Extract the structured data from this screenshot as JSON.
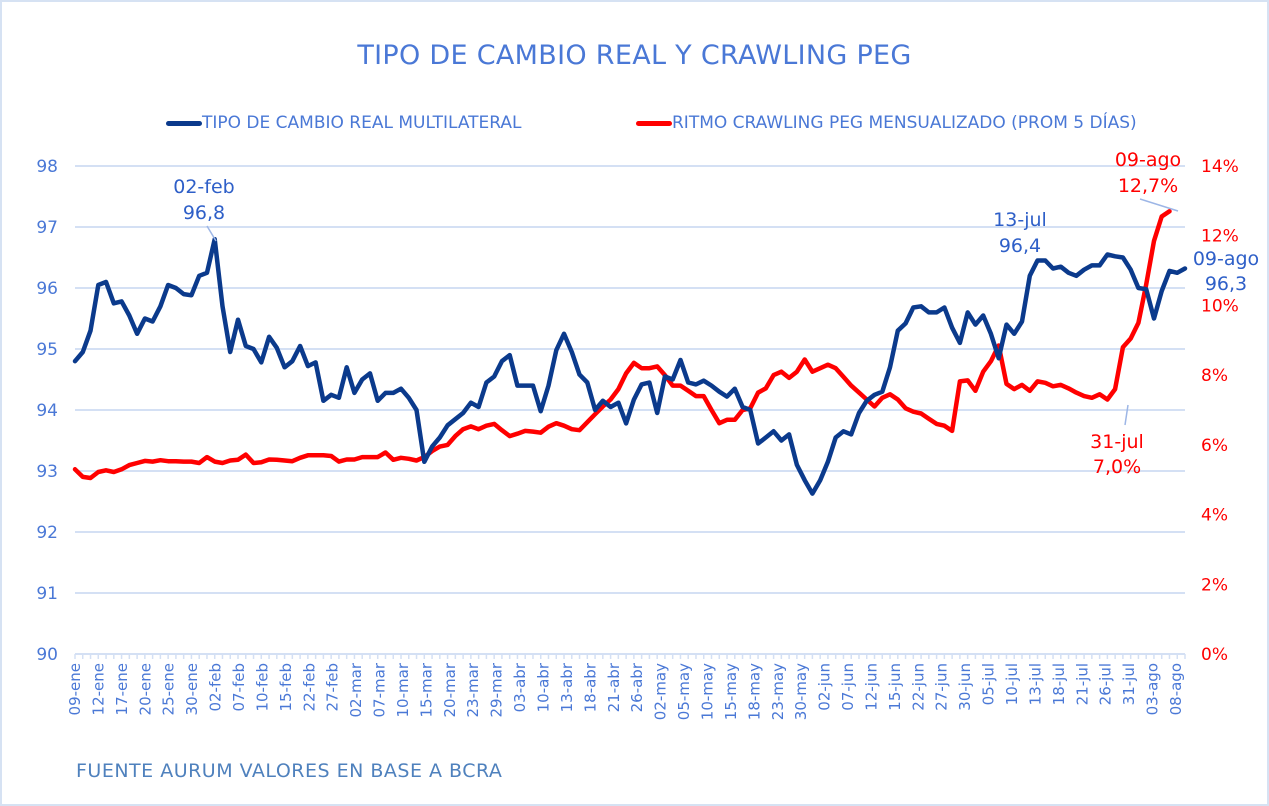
{
  "chart_data": {
    "type": "line",
    "title": "TIPO DE CAMBIO REAL Y CRAWLING PEG",
    "source": "FUENTE AURUM VALORES EN BASE A BCRA",
    "legend_position": "top",
    "grid": true,
    "y_left": {
      "label": "",
      "range": [
        90,
        98
      ],
      "ticks": [
        "90",
        "91",
        "92",
        "93",
        "94",
        "95",
        "96",
        "97",
        "98"
      ]
    },
    "y_right": {
      "label": "",
      "range": [
        0,
        14
      ],
      "ticks": [
        "0%",
        "2%",
        "4%",
        "6%",
        "8%",
        "10%",
        "12%",
        "14%"
      ]
    },
    "x_tick_labels": [
      "09-ene",
      "12-ene",
      "17-ene",
      "20-ene",
      "25-ene",
      "30-ene",
      "02-feb",
      "07-feb",
      "10-feb",
      "15-feb",
      "22-feb",
      "27-feb",
      "02-mar",
      "07-mar",
      "10-mar",
      "15-mar",
      "20-mar",
      "23-mar",
      "29-mar",
      "03-abr",
      "10-abr",
      "13-abr",
      "18-abr",
      "21-abr",
      "26-abr",
      "02-may",
      "05-may",
      "10-may",
      "15-may",
      "18-may",
      "23-may",
      "30-may",
      "02-jun",
      "07-jun",
      "12-jun",
      "15-jun",
      "22-jun",
      "27-jun",
      "30-jun",
      "05-jul",
      "10-jul",
      "13-jul",
      "18-jul",
      "21-jul",
      "26-jul",
      "31-jul",
      "03-ago",
      "08-ago"
    ],
    "series": [
      {
        "name": "TIPO DE CAMBIO REAL MULTILATERAL",
        "axis": "left",
        "color": "#0b3a8c",
        "values": [
          94.8,
          94.95,
          95.3,
          96.05,
          96.1,
          95.75,
          95.78,
          95.55,
          95.25,
          95.5,
          95.45,
          95.7,
          96.05,
          96.0,
          95.9,
          95.88,
          96.2,
          96.25,
          96.8,
          95.7,
          94.95,
          95.48,
          95.05,
          95.0,
          94.78,
          95.2,
          95.02,
          94.7,
          94.8,
          95.05,
          94.72,
          94.78,
          94.15,
          94.25,
          94.2,
          94.7,
          94.28,
          94.5,
          94.6,
          94.15,
          94.28,
          94.28,
          94.35,
          94.2,
          94.0,
          93.15,
          93.4,
          93.55,
          93.75,
          93.85,
          93.95,
          94.12,
          94.05,
          94.45,
          94.55,
          94.8,
          94.9,
          94.4,
          94.4,
          94.4,
          93.98,
          94.4,
          94.98,
          95.25,
          94.95,
          94.58,
          94.45,
          94.0,
          94.15,
          94.05,
          94.12,
          93.78,
          94.17,
          94.42,
          94.45,
          93.95,
          94.55,
          94.5,
          94.82,
          94.45,
          94.42,
          94.48,
          94.4,
          94.3,
          94.22,
          94.35,
          94.05,
          94.0,
          93.45,
          93.55,
          93.65,
          93.5,
          93.6,
          93.1,
          92.85,
          92.63,
          92.85,
          93.15,
          93.55,
          93.65,
          93.6,
          93.95,
          94.15,
          94.25,
          94.3,
          94.7,
          95.3,
          95.42,
          95.68,
          95.7,
          95.6,
          95.6,
          95.68,
          95.35,
          95.1,
          95.6,
          95.4,
          95.55,
          95.25,
          94.85,
          95.4,
          95.25,
          95.45,
          96.2,
          96.45,
          96.45,
          96.32,
          96.35,
          96.25,
          96.2,
          96.3,
          96.37,
          96.37,
          96.55,
          96.52,
          96.5,
          96.3,
          96.0,
          95.98,
          95.5,
          95.95,
          96.28,
          96.25,
          96.32
        ]
      },
      {
        "name": "RITMO CRAWLING PEG MENSUALIZADO (PROM 5 DÍAS)",
        "axis": "right",
        "color": "#ff0000",
        "values": [
          5.3,
          5.08,
          5.05,
          5.22,
          5.27,
          5.22,
          5.3,
          5.42,
          5.48,
          5.54,
          5.52,
          5.56,
          5.53,
          5.53,
          5.52,
          5.52,
          5.48,
          5.65,
          5.52,
          5.48,
          5.55,
          5.57,
          5.72,
          5.48,
          5.5,
          5.58,
          5.57,
          5.55,
          5.53,
          5.63,
          5.7,
          5.7,
          5.7,
          5.68,
          5.52,
          5.58,
          5.58,
          5.65,
          5.65,
          5.65,
          5.78,
          5.57,
          5.63,
          5.6,
          5.55,
          5.65,
          5.82,
          5.95,
          6.0,
          6.25,
          6.45,
          6.53,
          6.45,
          6.55,
          6.6,
          6.42,
          6.25,
          6.32,
          6.4,
          6.38,
          6.35,
          6.52,
          6.62,
          6.55,
          6.45,
          6.42,
          6.65,
          6.88,
          7.1,
          7.3,
          7.6,
          8.05,
          8.35,
          8.2,
          8.2,
          8.25,
          8.0,
          7.7,
          7.7,
          7.55,
          7.4,
          7.4,
          7.0,
          6.62,
          6.72,
          6.72,
          7.0,
          7.05,
          7.5,
          7.62,
          8.0,
          8.1,
          7.92,
          8.1,
          8.45,
          8.1,
          8.2,
          8.3,
          8.2,
          7.95,
          7.7,
          7.5,
          7.3,
          7.1,
          7.35,
          7.45,
          7.3,
          7.05,
          6.95,
          6.9,
          6.75,
          6.6,
          6.55,
          6.4,
          7.82,
          7.85,
          7.55,
          8.1,
          8.4,
          8.85,
          7.75,
          7.6,
          7.72,
          7.55,
          7.82,
          7.78,
          7.68,
          7.72,
          7.62,
          7.5,
          7.4,
          7.35,
          7.45,
          7.3,
          7.6,
          8.8,
          9.05,
          9.5,
          10.6,
          11.85,
          12.55,
          12.7
        ]
      }
    ],
    "annotations": [
      {
        "series": "TIPO DE CAMBIO REAL MULTILATERAL",
        "date": "02-feb",
        "value_label": "96,8"
      },
      {
        "series": "TIPO DE CAMBIO REAL MULTILATERAL",
        "date": "13-jul",
        "value_label": "96,4"
      },
      {
        "series": "TIPO DE CAMBIO REAL MULTILATERAL",
        "date": "09-ago",
        "value_label": "96,3"
      },
      {
        "series": "RITMO CRAWLING PEG MENSUALIZADO (PROM 5 DÍAS)",
        "date": "31-jul",
        "value_label": "7,0%"
      },
      {
        "series": "RITMO CRAWLING PEG MENSUALIZADO (PROM 5 DÍAS)",
        "date": "09-ago",
        "value_label": "12,7%"
      }
    ]
  }
}
